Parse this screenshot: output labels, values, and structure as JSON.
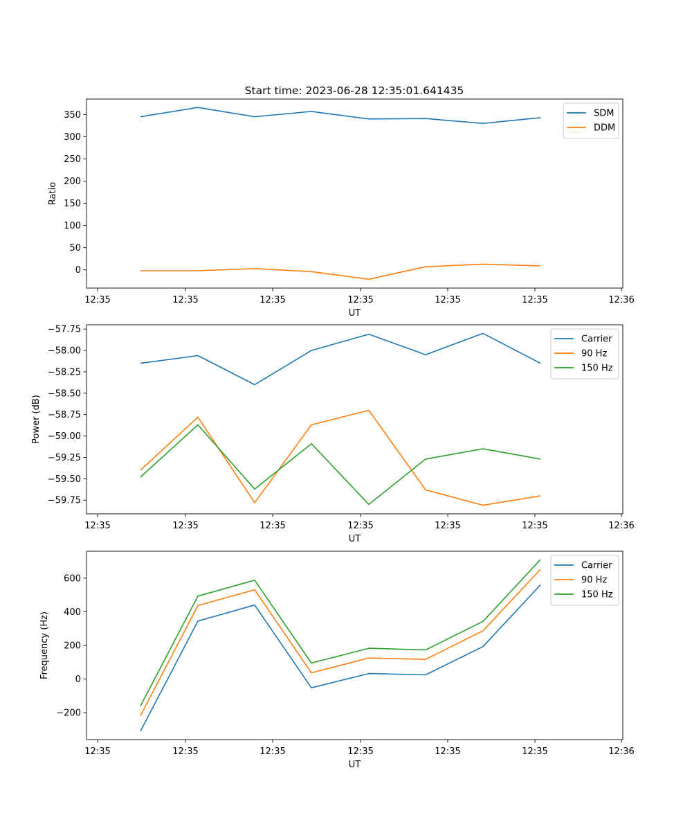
{
  "figure": {
    "title": "Start time: 2023-06-28 12:35:01.641435"
  },
  "chart_data": [
    {
      "type": "line",
      "xlabel": "UT",
      "ylabel": "Ratio",
      "x_tick_labels": [
        "12:35",
        "12:35",
        "12:35",
        "12:35",
        "12:35",
        "12:35",
        "12:36"
      ],
      "y_ticks": [
        0,
        50,
        100,
        150,
        200,
        250,
        300,
        350
      ],
      "ylim": [
        -41,
        385
      ],
      "legend_position": "top-right",
      "series": [
        {
          "name": "SDM",
          "color": "#1f77b4",
          "values": [
            345,
            366,
            345,
            357,
            340,
            341,
            330,
            343
          ]
        },
        {
          "name": "DDM",
          "color": "#ff7f0e",
          "values": [
            -2,
            -2,
            3,
            -4,
            -21,
            7,
            13,
            9
          ]
        }
      ]
    },
    {
      "type": "line",
      "xlabel": "UT",
      "ylabel": "Power (dB)",
      "x_tick_labels": [
        "12:35",
        "12:35",
        "12:35",
        "12:35",
        "12:35",
        "12:35",
        "12:36"
      ],
      "y_ticks": [
        -59.75,
        -59.5,
        -59.25,
        -59.0,
        -58.75,
        -58.5,
        -58.25,
        -58.0,
        -57.75
      ],
      "y_tick_labels": [
        "−59.75",
        "−59.50",
        "−59.25",
        "−59.00",
        "−58.75",
        "−58.50",
        "−58.25",
        "−58.00",
        "−57.75"
      ],
      "ylim": [
        -59.91,
        -57.7
      ],
      "legend_position": "top-right",
      "series": [
        {
          "name": "Carrier",
          "color": "#1f77b4",
          "values": [
            -58.15,
            -58.06,
            -58.4,
            -58.0,
            -57.81,
            -58.05,
            -57.8,
            -58.15
          ]
        },
        {
          "name": "90 Hz",
          "color": "#ff7f0e",
          "values": [
            -59.4,
            -58.78,
            -59.78,
            -58.87,
            -58.7,
            -59.63,
            -59.81,
            -59.7
          ]
        },
        {
          "name": "150 Hz",
          "color": "#2ca02c",
          "values": [
            -59.48,
            -58.87,
            -59.62,
            -59.09,
            -59.8,
            -59.27,
            -59.15,
            -59.27
          ]
        }
      ]
    },
    {
      "type": "line",
      "xlabel": "UT",
      "ylabel": "Frequency (Hz)",
      "x_tick_labels": [
        "12:35",
        "12:35",
        "12:35",
        "12:35",
        "12:35",
        "12:35",
        "12:36"
      ],
      "y_ticks": [
        -200,
        0,
        200,
        400,
        600
      ],
      "y_tick_labels": [
        "−200",
        "0",
        "200",
        "400",
        "600"
      ],
      "ylim": [
        -360,
        760
      ],
      "legend_position": "top-right",
      "series": [
        {
          "name": "Carrier",
          "color": "#1f77b4",
          "values": [
            -310,
            345,
            440,
            -52,
            33,
            25,
            193,
            560
          ]
        },
        {
          "name": "90 Hz",
          "color": "#ff7f0e",
          "values": [
            -218,
            437,
            531,
            37,
            125,
            117,
            287,
            652
          ]
        },
        {
          "name": "150 Hz",
          "color": "#2ca02c",
          "values": [
            -160,
            493,
            588,
            95,
            183,
            173,
            343,
            710
          ]
        }
      ]
    }
  ]
}
